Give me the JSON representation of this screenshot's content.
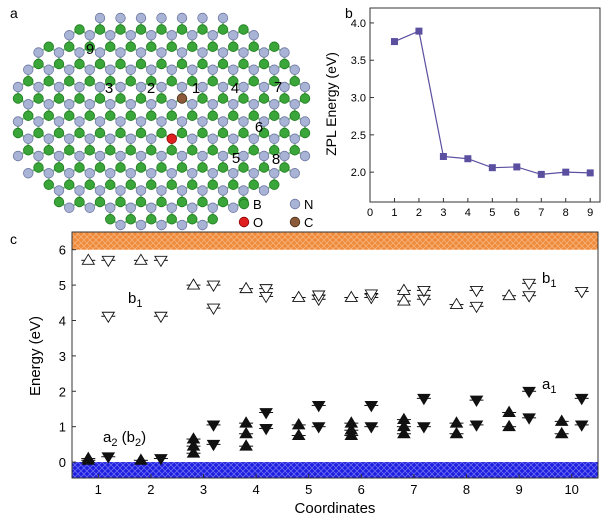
{
  "panels": {
    "a": {
      "label": "a",
      "site_numbers": [
        "1",
        "2",
        "3",
        "4",
        "5",
        "6",
        "7",
        "8",
        "9"
      ],
      "legend": [
        {
          "symbol": "B",
          "color": "#3aa63a"
        },
        {
          "symbol": "N",
          "color": "#a9b3d6"
        },
        {
          "symbol": "O",
          "color": "#e02020"
        },
        {
          "symbol": "C",
          "color": "#8a5a3a"
        }
      ]
    },
    "b": {
      "label": "b"
    },
    "c": {
      "label": "c"
    }
  },
  "chart_data": [
    {
      "panel": "b",
      "type": "line",
      "xlabel": "",
      "ylabel": "ZPL Energy (eV)",
      "x": [
        1,
        2,
        3,
        4,
        5,
        6,
        7,
        8,
        9
      ],
      "y": [
        3.75,
        3.89,
        2.21,
        2.18,
        2.06,
        2.07,
        1.97,
        2.0,
        1.99
      ],
      "xlim": [
        0,
        9.4
      ],
      "ylim": [
        1.6,
        4.2
      ],
      "xticks": [
        "0",
        "1",
        "2",
        "3",
        "4",
        "5",
        "6",
        "7",
        "8",
        "9"
      ],
      "yticks": [
        "2.0",
        "2.5",
        "3.0",
        "3.5",
        "4.0"
      ],
      "color": "#5b4fa0"
    },
    {
      "panel": "c",
      "type": "scatter",
      "xlabel": "Coordinates",
      "ylabel": "Energy (eV)",
      "xlim": [
        0.5,
        10.5
      ],
      "ylim": [
        -0.45,
        6.5
      ],
      "xticks": [
        "1",
        "2",
        "3",
        "4",
        "5",
        "6",
        "7",
        "8",
        "9",
        "10"
      ],
      "yticks": [
        "0",
        "1",
        "2",
        "3",
        "4",
        "5",
        "6"
      ],
      "bands": {
        "valence_top": 0,
        "conduction_bottom": 6.0,
        "valence_color": "#1a1adf",
        "conduction_color": "#f08a3c"
      },
      "annotations": [
        "b1",
        "b1",
        "a1",
        "a2 (b2)"
      ],
      "series": [
        {
          "name": "",
          "marker": "up-empty",
          "points": [
            [
              1,
              5.7
            ],
            [
              2,
              5.7
            ],
            [
              3,
              5.0
            ],
            [
              4,
              4.9
            ],
            [
              5,
              4.65
            ],
            [
              6,
              4.65
            ],
            [
              7,
              4.55
            ],
            [
              7,
              4.85
            ],
            [
              8,
              4.45
            ],
            [
              9,
              4.7
            ]
          ]
        },
        {
          "name": "",
          "marker": "down-empty",
          "points": [
            [
              1,
              5.7
            ],
            [
              1,
              4.12
            ],
            [
              2,
              5.7
            ],
            [
              2,
              4.12
            ],
            [
              3,
              5.0
            ],
            [
              3,
              4.35
            ],
            [
              4,
              4.9
            ],
            [
              4,
              4.68
            ],
            [
              5,
              4.6
            ],
            [
              5,
              4.72
            ],
            [
              6,
              4.65
            ],
            [
              6,
              4.75
            ],
            [
              7,
              4.6
            ],
            [
              7,
              4.85
            ],
            [
              8,
              4.4
            ],
            [
              8,
              4.85
            ],
            [
              9,
              4.7
            ],
            [
              9,
              5.05
            ],
            [
              10,
              4.82
            ]
          ]
        },
        {
          "name": "",
          "marker": "up-filled",
          "points": [
            [
              1,
              0.05
            ],
            [
              1,
              0.1
            ],
            [
              2,
              0.05
            ],
            [
              3,
              0.25
            ],
            [
              3,
              0.45
            ],
            [
              3,
              0.65
            ],
            [
              4,
              0.45
            ],
            [
              4,
              0.8
            ],
            [
              4,
              1.1
            ],
            [
              5,
              0.75
            ],
            [
              5,
              1.05
            ],
            [
              6,
              0.75
            ],
            [
              6,
              0.9
            ],
            [
              6,
              1.1
            ],
            [
              7,
              0.8
            ],
            [
              7,
              1.0
            ],
            [
              7,
              1.2
            ],
            [
              8,
              0.8
            ],
            [
              8,
              1.1
            ],
            [
              9,
              1.0
            ],
            [
              9,
              1.4
            ],
            [
              10,
              0.8
            ],
            [
              10,
              1.15
            ]
          ]
        },
        {
          "name": "",
          "marker": "down-filled",
          "points": [
            [
              1,
              0.15
            ],
            [
              2,
              0.1
            ],
            [
              3,
              0.5
            ],
            [
              3,
              1.05
            ],
            [
              4,
              0.95
            ],
            [
              4,
              1.4
            ],
            [
              5,
              1.0
            ],
            [
              5,
              1.6
            ],
            [
              6,
              1.0
            ],
            [
              6,
              1.6
            ],
            [
              7,
              1.0
            ],
            [
              7,
              1.8
            ],
            [
              8,
              1.05
            ],
            [
              8,
              1.75
            ],
            [
              9,
              1.25
            ],
            [
              9,
              2.0
            ],
            [
              10,
              1.05
            ],
            [
              10,
              1.8
            ]
          ]
        }
      ]
    }
  ]
}
